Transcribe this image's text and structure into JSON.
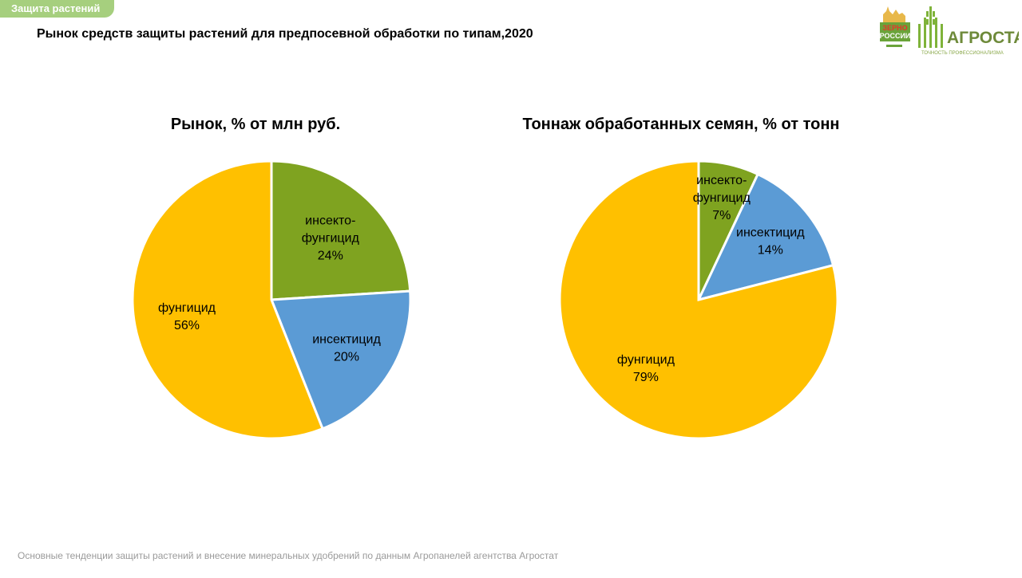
{
  "header": {
    "section_tag": "Защита растений",
    "title": "Рынок средств защиты растений для предпосевной обработки по типам,2020"
  },
  "logos": {
    "zerno_line1": "ЗЕРНО",
    "zerno_line2": "РОССИИ",
    "agrostat_name": "АГРОСТАТ",
    "agrostat_tagline": "ТОЧНОСТЬ ПРОФЕССИОНАЛИЗМА"
  },
  "footer": {
    "text": "Основные тенденции защиты растений и внесение минеральных удобрений по данным Агропанелей агентства Агростат"
  },
  "colors": {
    "fungicide": "#ffc000",
    "insecticide": "#5b9bd5",
    "insecto_fungicide": "#7fa320",
    "section_tag": "#a6cf7e"
  },
  "chart_data": [
    {
      "type": "pie",
      "title": "Рынок, % от млн руб.",
      "slices": [
        {
          "label_lines": [
            "инсекто-",
            "фунгицид"
          ],
          "value": 24,
          "value_label": "24%",
          "color": "#7fa320"
        },
        {
          "label_lines": [
            "инсектицид"
          ],
          "value": 20,
          "value_label": "20%",
          "color": "#5b9bd5"
        },
        {
          "label_lines": [
            "фунгицид"
          ],
          "value": 56,
          "value_label": "56%",
          "color": "#ffc000"
        }
      ]
    },
    {
      "type": "pie",
      "title": "Тоннаж обработанных семян, % от тонн",
      "slices": [
        {
          "label_lines": [
            "инсекто-",
            "фунгицид"
          ],
          "value": 7,
          "value_label": "7%",
          "color": "#7fa320"
        },
        {
          "label_lines": [
            "инсектицид"
          ],
          "value": 14,
          "value_label": "14%",
          "color": "#5b9bd5"
        },
        {
          "label_lines": [
            "фунгицид"
          ],
          "value": 79,
          "value_label": "79%",
          "color": "#ffc000"
        }
      ]
    }
  ]
}
